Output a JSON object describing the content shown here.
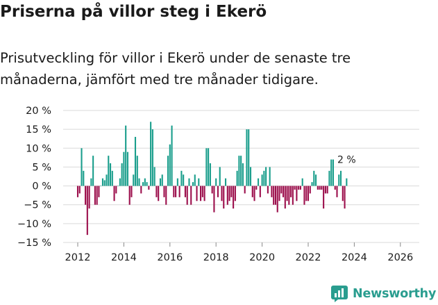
{
  "title": "Priserna på villor steg i Ekerö",
  "subtitle": "Prisutveckling för villor i Ekerö under de senaste tre månaderna, jämfört med tre månader tidigare.",
  "brand": "Newsworthy",
  "colors": {
    "positive": "#1a9e8c",
    "negative": "#9c0f4c",
    "grid": "#d9d9d9",
    "text": "#1a1a1a",
    "brand": "#2a9d8f"
  },
  "chart_data": {
    "type": "bar",
    "title": "Priserna på villor steg i Ekerö",
    "subtitle": "Prisutveckling för villor i Ekerö under de senaste tre månaderna, jämfört med tre månader tidigare.",
    "ylabel": "",
    "xlabel": "",
    "ylim": [
      -15,
      20
    ],
    "yticks": [
      20,
      15,
      10,
      5,
      0,
      -5,
      -10,
      -15
    ],
    "ytick_labels": [
      "20 %",
      "15 %",
      "10 %",
      "5 %",
      "0 %",
      "−5 %",
      "−10 %",
      "−15 %"
    ],
    "xticks": [
      2012,
      2014,
      2016,
      2018,
      2020,
      2022,
      2024,
      2026
    ],
    "start": "2012-01",
    "frequency": "monthly",
    "values": [
      -3,
      -2,
      10,
      4,
      -5,
      -13,
      -6,
      2,
      8,
      -5,
      -5,
      -3,
      0,
      2,
      1.5,
      3,
      8,
      6,
      4,
      -4,
      -2,
      0,
      2,
      6,
      9,
      16,
      9,
      -5,
      -3,
      3,
      13,
      8,
      2,
      -2,
      1,
      2,
      1,
      -1,
      17,
      15,
      5,
      -3,
      -4,
      2,
      3,
      -3,
      -5,
      8,
      11,
      16,
      -3,
      -3,
      2,
      -3,
      4,
      3,
      -3,
      -5,
      2,
      -5,
      1,
      3,
      -4,
      2,
      -4,
      -3,
      -4,
      10,
      10,
      6,
      -2,
      -7,
      2,
      -3,
      5,
      -4,
      -6,
      2,
      -5,
      -4,
      -3,
      -6,
      -4,
      4,
      8,
      8,
      6,
      -2,
      15,
      15,
      5,
      -3,
      -4,
      -1,
      2,
      -3,
      3,
      4,
      5,
      -2,
      5,
      -3,
      -5,
      -5,
      -7,
      -4,
      -2,
      -3,
      -6,
      -4,
      -5,
      -3,
      -5,
      -1,
      -4,
      -1,
      -1,
      2,
      -5,
      -4,
      -4,
      -2,
      1,
      4,
      3,
      -1,
      -1,
      -1,
      -6,
      -2,
      -2,
      4,
      7,
      7,
      -1,
      -3,
      3,
      4,
      -4,
      -6,
      2
    ],
    "annotations": [
      {
        "text": "2 %"
      }
    ]
  }
}
